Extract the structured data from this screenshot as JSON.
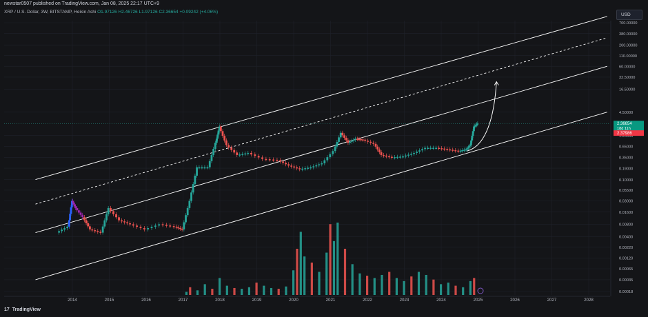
{
  "header": {
    "published": "newstar0507 published on TradingView.com, Jan 08, 2025 22:17 UTC+9"
  },
  "legend": {
    "symbol": "XRP / U.S. Dollar, 3W, BITSTAMP, Heikin Ashi",
    "open": "O1.97126",
    "high": "H2.46726",
    "low": "L1.97126",
    "close": "C2.36654",
    "change": "+0.09242 (+4.06%)"
  },
  "currency": "USD",
  "footer": {
    "brand": "TradingView"
  },
  "colors": {
    "up": "#26a69a",
    "down": "#ef5350",
    "up_bright": "#089981",
    "line": "#ffffff"
  },
  "chart_data": {
    "type": "candlestick",
    "scale": "log",
    "x_ticks": [
      "2014",
      "2015",
      "2016",
      "2017",
      "2018",
      "2019",
      "2020",
      "2021",
      "2022",
      "2023",
      "2024",
      "2025",
      "2026",
      "2027",
      "2028"
    ],
    "y_ticks": [
      "700.00000",
      "380.00000",
      "200.00000",
      "110.00000",
      "60.00000",
      "32.50000",
      "16.50000",
      "4.50000",
      "1.20000",
      "0.65000",
      "0.35000",
      "0.19000",
      "0.10000",
      "0.05500",
      "0.03000",
      "0.01600",
      "0.00800",
      "0.00400",
      "0.00220",
      "0.00120",
      "0.00065",
      "0.00035",
      "0.00018"
    ],
    "price_labels": {
      "last": "2.36654",
      "countdown": "18d 11h",
      "other": "2.37986"
    },
    "price_series": [
      {
        "t": 2013.6,
        "v": 0.005
      },
      {
        "t": 2013.9,
        "v": 0.007
      },
      {
        "t": 2014.0,
        "v": 0.03
      },
      {
        "t": 2014.1,
        "v": 0.02
      },
      {
        "t": 2014.3,
        "v": 0.012
      },
      {
        "t": 2014.5,
        "v": 0.006
      },
      {
        "t": 2014.8,
        "v": 0.005
      },
      {
        "t": 2015.0,
        "v": 0.02
      },
      {
        "t": 2015.3,
        "v": 0.01
      },
      {
        "t": 2015.6,
        "v": 0.008
      },
      {
        "t": 2016.0,
        "v": 0.006
      },
      {
        "t": 2016.4,
        "v": 0.008
      },
      {
        "t": 2016.8,
        "v": 0.007
      },
      {
        "t": 2017.0,
        "v": 0.006
      },
      {
        "t": 2017.2,
        "v": 0.03
      },
      {
        "t": 2017.4,
        "v": 0.2
      },
      {
        "t": 2017.7,
        "v": 0.2
      },
      {
        "t": 2017.9,
        "v": 0.8
      },
      {
        "t": 2018.0,
        "v": 2.0
      },
      {
        "t": 2018.2,
        "v": 0.7
      },
      {
        "t": 2018.5,
        "v": 0.4
      },
      {
        "t": 2018.8,
        "v": 0.45
      },
      {
        "t": 2019.2,
        "v": 0.32
      },
      {
        "t": 2019.6,
        "v": 0.3
      },
      {
        "t": 2019.9,
        "v": 0.22
      },
      {
        "t": 2020.2,
        "v": 0.18
      },
      {
        "t": 2020.5,
        "v": 0.2
      },
      {
        "t": 2020.8,
        "v": 0.25
      },
      {
        "t": 2021.1,
        "v": 0.5
      },
      {
        "t": 2021.3,
        "v": 1.4
      },
      {
        "t": 2021.5,
        "v": 0.8
      },
      {
        "t": 2021.7,
        "v": 1.0
      },
      {
        "t": 2021.9,
        "v": 0.95
      },
      {
        "t": 2022.2,
        "v": 0.75
      },
      {
        "t": 2022.4,
        "v": 0.4
      },
      {
        "t": 2022.7,
        "v": 0.35
      },
      {
        "t": 2023.0,
        "v": 0.37
      },
      {
        "t": 2023.3,
        "v": 0.45
      },
      {
        "t": 2023.6,
        "v": 0.6
      },
      {
        "t": 2023.9,
        "v": 0.6
      },
      {
        "t": 2024.2,
        "v": 0.55
      },
      {
        "t": 2024.5,
        "v": 0.5
      },
      {
        "t": 2024.7,
        "v": 0.55
      },
      {
        "t": 2024.8,
        "v": 0.7
      },
      {
        "t": 2024.9,
        "v": 2.0
      },
      {
        "t": 2025.0,
        "v": 2.37
      }
    ],
    "volume_series": [
      {
        "t": 2017.1,
        "v": 4
      },
      {
        "t": 2017.2,
        "v": 10
      },
      {
        "t": 2017.4,
        "v": 6
      },
      {
        "t": 2017.6,
        "v": 14
      },
      {
        "t": 2017.8,
        "v": 8
      },
      {
        "t": 2018.0,
        "v": 22
      },
      {
        "t": 2018.2,
        "v": 12
      },
      {
        "t": 2018.4,
        "v": 9
      },
      {
        "t": 2018.6,
        "v": 8
      },
      {
        "t": 2018.8,
        "v": 10
      },
      {
        "t": 2019.0,
        "v": 16
      },
      {
        "t": 2019.2,
        "v": 12
      },
      {
        "t": 2019.4,
        "v": 9
      },
      {
        "t": 2019.6,
        "v": 8
      },
      {
        "t": 2019.8,
        "v": 11
      },
      {
        "t": 2020.0,
        "v": 32
      },
      {
        "t": 2020.1,
        "v": 60
      },
      {
        "t": 2020.2,
        "v": 82
      },
      {
        "t": 2020.3,
        "v": 50
      },
      {
        "t": 2020.5,
        "v": 42
      },
      {
        "t": 2020.7,
        "v": 30
      },
      {
        "t": 2020.9,
        "v": 55
      },
      {
        "t": 2021.0,
        "v": 92
      },
      {
        "t": 2021.1,
        "v": 70
      },
      {
        "t": 2021.2,
        "v": 94
      },
      {
        "t": 2021.4,
        "v": 60
      },
      {
        "t": 2021.6,
        "v": 40
      },
      {
        "t": 2021.8,
        "v": 28
      },
      {
        "t": 2022.0,
        "v": 25
      },
      {
        "t": 2022.2,
        "v": 22
      },
      {
        "t": 2022.4,
        "v": 26
      },
      {
        "t": 2022.6,
        "v": 30
      },
      {
        "t": 2022.8,
        "v": 22
      },
      {
        "t": 2023.0,
        "v": 18
      },
      {
        "t": 2023.2,
        "v": 24
      },
      {
        "t": 2023.4,
        "v": 30
      },
      {
        "t": 2023.6,
        "v": 26
      },
      {
        "t": 2023.8,
        "v": 20
      },
      {
        "t": 2024.0,
        "v": 14
      },
      {
        "t": 2024.2,
        "v": 16
      },
      {
        "t": 2024.4,
        "v": 12
      },
      {
        "t": 2024.6,
        "v": 10
      },
      {
        "t": 2024.8,
        "v": 18
      },
      {
        "t": 2024.9,
        "v": 22
      }
    ],
    "channel_lines": [
      {
        "style": "solid",
        "from": {
          "t": 2013.0,
          "v": 0.1
        },
        "to": {
          "t": 2028.5,
          "v": 1000
        }
      },
      {
        "style": "dashed",
        "from": {
          "t": 2013.0,
          "v": 0.025
        },
        "to": {
          "t": 2028.5,
          "v": 300
        }
      },
      {
        "style": "solid",
        "from": {
          "t": 2013.0,
          "v": 0.005
        },
        "to": {
          "t": 2028.5,
          "v": 60
        }
      },
      {
        "style": "solid",
        "from": {
          "t": 2013.0,
          "v": 0.00035
        },
        "to": {
          "t": 2028.5,
          "v": 4.5
        }
      }
    ],
    "projection_arrow": {
      "from": {
        "t": 2024.7,
        "v": 0.5
      },
      "to": {
        "t": 2025.5,
        "v": 25
      }
    }
  }
}
